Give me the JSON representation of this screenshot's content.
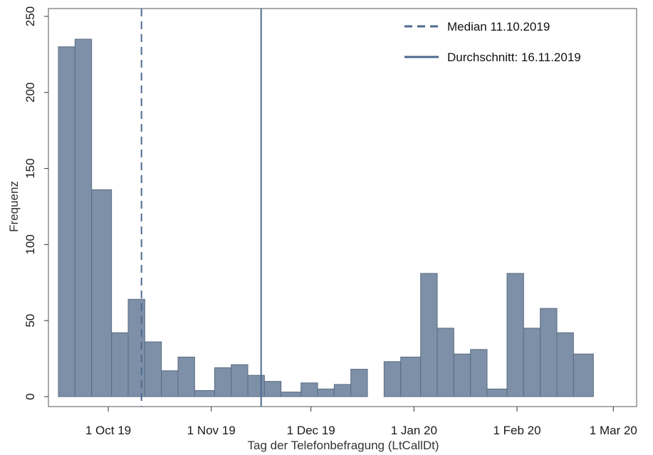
{
  "chart_data": {
    "type": "bar",
    "xlabel": "Tag der Telefonbefragung (LtCallDt)",
    "ylabel": "Frequenz",
    "ylim": [
      0,
      250
    ],
    "y_ticks": [
      0,
      50,
      100,
      150,
      200,
      250
    ],
    "x_ticks": [
      {
        "date": "2019-10-01",
        "label": "1 Oct 19"
      },
      {
        "date": "2019-11-01",
        "label": "1 Nov 19"
      },
      {
        "date": "2019-12-01",
        "label": "1 Dec 19"
      },
      {
        "date": "2020-01-01",
        "label": "1 Jan 20"
      },
      {
        "date": "2020-02-01",
        "label": "1 Feb 20"
      },
      {
        "date": "2020-03-01",
        "label": "1 Mar 20"
      }
    ],
    "xlim": [
      "2019-09-13",
      "2020-03-08"
    ],
    "bins": [
      {
        "start": "2019-09-16",
        "end": "2019-09-21",
        "value": 230
      },
      {
        "start": "2019-09-21",
        "end": "2019-09-26",
        "value": 235
      },
      {
        "start": "2019-09-26",
        "end": "2019-10-02",
        "value": 136
      },
      {
        "start": "2019-10-02",
        "end": "2019-10-07",
        "value": 42
      },
      {
        "start": "2019-10-07",
        "end": "2019-10-12",
        "value": 64
      },
      {
        "start": "2019-10-12",
        "end": "2019-10-17",
        "value": 36
      },
      {
        "start": "2019-10-17",
        "end": "2019-10-22",
        "value": 17
      },
      {
        "start": "2019-10-22",
        "end": "2019-10-27",
        "value": 26
      },
      {
        "start": "2019-10-27",
        "end": "2019-11-02",
        "value": 4
      },
      {
        "start": "2019-11-02",
        "end": "2019-11-07",
        "value": 19
      },
      {
        "start": "2019-11-07",
        "end": "2019-11-12",
        "value": 21
      },
      {
        "start": "2019-11-12",
        "end": "2019-11-17",
        "value": 14
      },
      {
        "start": "2019-11-17",
        "end": "2019-11-22",
        "value": 10
      },
      {
        "start": "2019-11-22",
        "end": "2019-11-28",
        "value": 3
      },
      {
        "start": "2019-11-28",
        "end": "2019-12-03",
        "value": 9
      },
      {
        "start": "2019-12-03",
        "end": "2019-12-08",
        "value": 5
      },
      {
        "start": "2019-12-08",
        "end": "2019-12-13",
        "value": 8
      },
      {
        "start": "2019-12-13",
        "end": "2019-12-18",
        "value": 18
      },
      {
        "start": "2019-12-23",
        "end": "2019-12-28",
        "value": 23
      },
      {
        "start": "2019-12-28",
        "end": "2020-01-03",
        "value": 26
      },
      {
        "start": "2020-01-03",
        "end": "2020-01-08",
        "value": 81
      },
      {
        "start": "2020-01-08",
        "end": "2020-01-13",
        "value": 45
      },
      {
        "start": "2020-01-13",
        "end": "2020-01-18",
        "value": 28
      },
      {
        "start": "2020-01-18",
        "end": "2020-01-23",
        "value": 31
      },
      {
        "start": "2020-01-23",
        "end": "2020-01-29",
        "value": 5
      },
      {
        "start": "2020-01-29",
        "end": "2020-02-03",
        "value": 81
      },
      {
        "start": "2020-02-03",
        "end": "2020-02-08",
        "value": 45
      },
      {
        "start": "2020-02-08",
        "end": "2020-02-13",
        "value": 58
      },
      {
        "start": "2020-02-13",
        "end": "2020-02-18",
        "value": 42
      },
      {
        "start": "2020-02-18",
        "end": "2020-02-24",
        "value": 28
      }
    ],
    "reference_lines": [
      {
        "legend": "Median 11.10.2019",
        "date": "2019-10-11",
        "style": "dashed"
      },
      {
        "legend": "Durchschnitt: 16.11.2019",
        "date": "2019-11-16",
        "style": "solid"
      }
    ],
    "legend_position": "top-right",
    "grid": false,
    "bar_fill": "#7d90a8",
    "bar_stroke": "#5a6b80",
    "line_color": "#4d6a8f"
  }
}
